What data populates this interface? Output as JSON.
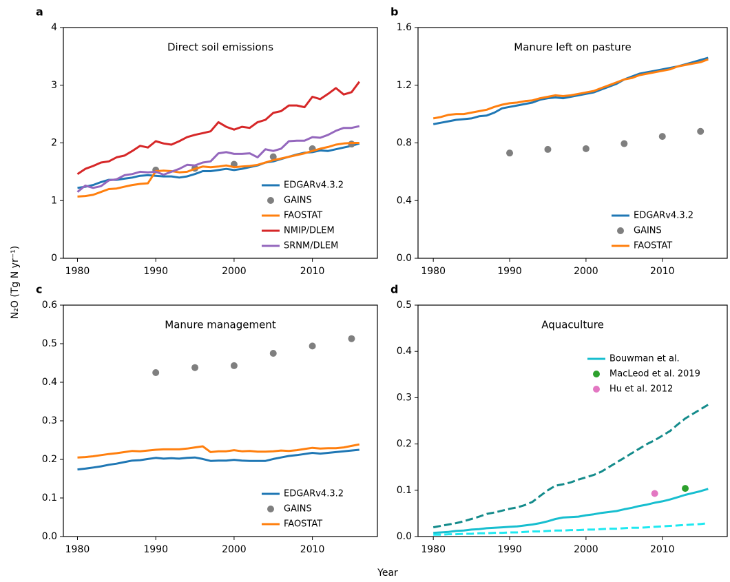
{
  "ylabel": "N₂O (Tg N yr⁻¹)",
  "xlabel": "Year",
  "chart_data": [
    {
      "type": "line",
      "label": "a",
      "title": "Direct soil emissions",
      "x": [
        1980,
        1981,
        1982,
        1983,
        1984,
        1985,
        1986,
        1987,
        1988,
        1989,
        1990,
        1991,
        1992,
        1993,
        1994,
        1995,
        1996,
        1997,
        1998,
        1999,
        2000,
        2001,
        2002,
        2003,
        2004,
        2005,
        2006,
        2007,
        2008,
        2009,
        2010,
        2011,
        2012,
        2013,
        2014,
        2015,
        2016
      ],
      "xlim": [
        1978.2,
        2018.3
      ],
      "xticks": [
        1980,
        1990,
        2000,
        2010
      ],
      "ylim": [
        0,
        4
      ],
      "yticks": [
        0,
        1,
        2,
        3,
        4
      ],
      "legend": "lower right",
      "series": [
        {
          "name": "EDGARv4.3.2",
          "kind": "line",
          "color": "#1f77b4",
          "values": [
            1.22,
            1.24,
            1.27,
            1.32,
            1.36,
            1.36,
            1.38,
            1.4,
            1.43,
            1.44,
            1.43,
            1.42,
            1.42,
            1.4,
            1.42,
            1.46,
            1.51,
            1.51,
            1.53,
            1.55,
            1.53,
            1.55,
            1.58,
            1.61,
            1.66,
            1.68,
            1.72,
            1.76,
            1.8,
            1.83,
            1.84,
            1.87,
            1.86,
            1.89,
            1.92,
            1.95,
            1.99
          ]
        },
        {
          "name": "GAINS",
          "kind": "scatter",
          "color": "#7f7f7f",
          "x": [
            1990,
            1995,
            2000,
            2005,
            2010,
            2015
          ],
          "values": [
            1.53,
            1.56,
            1.63,
            1.76,
            1.9,
            1.98
          ]
        },
        {
          "name": "FAOSTAT",
          "kind": "line",
          "color": "#ff7f0e",
          "values": [
            1.07,
            1.08,
            1.1,
            1.15,
            1.2,
            1.21,
            1.24,
            1.27,
            1.29,
            1.3,
            1.51,
            1.52,
            1.51,
            1.49,
            1.5,
            1.55,
            1.59,
            1.58,
            1.59,
            1.61,
            1.58,
            1.59,
            1.6,
            1.62,
            1.66,
            1.7,
            1.73,
            1.76,
            1.79,
            1.82,
            1.86,
            1.9,
            1.93,
            1.97,
            1.99,
            2.0,
            2.0
          ]
        },
        {
          "name": "NMIP/DLEM",
          "kind": "line",
          "color": "#d62728",
          "values": [
            1.46,
            1.55,
            1.6,
            1.66,
            1.68,
            1.75,
            1.78,
            1.86,
            1.95,
            1.92,
            2.03,
            1.99,
            1.97,
            2.03,
            2.1,
            2.14,
            2.17,
            2.2,
            2.36,
            2.28,
            2.23,
            2.28,
            2.26,
            2.36,
            2.4,
            2.52,
            2.55,
            2.65,
            2.65,
            2.62,
            2.8,
            2.76,
            2.85,
            2.95,
            2.84,
            2.88,
            3.06
          ]
        },
        {
          "name": "SRNM/DLEM",
          "kind": "line",
          "color": "#9467bd",
          "values": [
            1.15,
            1.26,
            1.22,
            1.25,
            1.35,
            1.37,
            1.44,
            1.46,
            1.5,
            1.49,
            1.5,
            1.45,
            1.5,
            1.55,
            1.62,
            1.61,
            1.66,
            1.68,
            1.82,
            1.84,
            1.81,
            1.81,
            1.82,
            1.75,
            1.89,
            1.86,
            1.9,
            2.03,
            2.04,
            2.04,
            2.1,
            2.09,
            2.14,
            2.21,
            2.26,
            2.26,
            2.29
          ]
        }
      ]
    },
    {
      "type": "line",
      "label": "b",
      "title": "Manure left on pasture",
      "x": [
        1980,
        1981,
        1982,
        1983,
        1984,
        1985,
        1986,
        1987,
        1988,
        1989,
        1990,
        1991,
        1992,
        1993,
        1994,
        1995,
        1996,
        1997,
        1998,
        1999,
        2000,
        2001,
        2002,
        2003,
        2004,
        2005,
        2006,
        2007,
        2008,
        2009,
        2010,
        2011,
        2012,
        2013,
        2014,
        2015,
        2016
      ],
      "xlim": [
        1978.0,
        2018.5
      ],
      "xticks": [
        1980,
        1990,
        2000,
        2010
      ],
      "ylim": [
        0,
        1.6
      ],
      "yticks": [
        {
          "value": 0,
          "label": "0.0"
        },
        0.4,
        0.8,
        1.2,
        1.6
      ],
      "legend": "lower right",
      "series": [
        {
          "name": "EDGARv4.3.2",
          "kind": "line",
          "color": "#1f77b4",
          "values": [
            0.93,
            0.94,
            0.95,
            0.96,
            0.965,
            0.97,
            0.985,
            0.99,
            1.01,
            1.04,
            1.05,
            1.06,
            1.07,
            1.08,
            1.1,
            1.11,
            1.115,
            1.11,
            1.12,
            1.13,
            1.14,
            1.15,
            1.17,
            1.19,
            1.21,
            1.24,
            1.26,
            1.28,
            1.29,
            1.3,
            1.31,
            1.32,
            1.33,
            1.345,
            1.36,
            1.375,
            1.39
          ]
        },
        {
          "name": "GAINS",
          "kind": "scatter",
          "color": "#7f7f7f",
          "x": [
            1990,
            1995,
            2000,
            2005,
            2010,
            2015
          ],
          "values": [
            0.73,
            0.755,
            0.76,
            0.795,
            0.845,
            0.88
          ]
        },
        {
          "name": "FAOSTAT",
          "kind": "line",
          "color": "#ff7f0e",
          "values": [
            0.97,
            0.98,
            0.995,
            1.0,
            1.0,
            1.01,
            1.02,
            1.03,
            1.05,
            1.065,
            1.075,
            1.08,
            1.09,
            1.095,
            1.11,
            1.12,
            1.13,
            1.125,
            1.13,
            1.14,
            1.15,
            1.16,
            1.18,
            1.2,
            1.22,
            1.24,
            1.25,
            1.27,
            1.28,
            1.29,
            1.3,
            1.31,
            1.33,
            1.34,
            1.35,
            1.36,
            1.38
          ]
        }
      ]
    },
    {
      "type": "line",
      "label": "c",
      "title": "Manure management",
      "x": [
        1980,
        1981,
        1982,
        1983,
        1984,
        1985,
        1986,
        1987,
        1988,
        1989,
        1990,
        1991,
        1992,
        1993,
        1994,
        1995,
        1996,
        1997,
        1998,
        1999,
        2000,
        2001,
        2002,
        2003,
        2004,
        2005,
        2006,
        2007,
        2008,
        2009,
        2010,
        2011,
        2012,
        2013,
        2014,
        2015,
        2016
      ],
      "xlim": [
        1978.2,
        2018.3
      ],
      "xticks": [
        1980,
        1990,
        2000,
        2010
      ],
      "ylim": [
        0,
        0.6
      ],
      "yticks": [
        {
          "value": 0,
          "label": "0.0"
        },
        0.1,
        0.2,
        0.3,
        0.4,
        0.5,
        0.6
      ],
      "legend": "lower right",
      "series": [
        {
          "name": "EDGARv4.3.2",
          "kind": "line",
          "color": "#1f77b4",
          "values": [
            0.174,
            0.176,
            0.179,
            0.182,
            0.186,
            0.189,
            0.193,
            0.197,
            0.198,
            0.201,
            0.204,
            0.202,
            0.203,
            0.202,
            0.204,
            0.205,
            0.201,
            0.196,
            0.197,
            0.197,
            0.199,
            0.197,
            0.196,
            0.196,
            0.196,
            0.201,
            0.205,
            0.209,
            0.211,
            0.214,
            0.217,
            0.215,
            0.217,
            0.219,
            0.221,
            0.223,
            0.225
          ]
        },
        {
          "name": "GAINS",
          "kind": "scatter",
          "color": "#7f7f7f",
          "x": [
            1990,
            1995,
            2000,
            2005,
            2010,
            2015
          ],
          "values": [
            0.425,
            0.438,
            0.443,
            0.475,
            0.494,
            0.513
          ]
        },
        {
          "name": "FAOSTAT",
          "kind": "line",
          "color": "#ff7f0e",
          "values": [
            0.205,
            0.206,
            0.208,
            0.211,
            0.214,
            0.216,
            0.219,
            0.222,
            0.221,
            0.223,
            0.225,
            0.226,
            0.226,
            0.226,
            0.228,
            0.231,
            0.234,
            0.219,
            0.221,
            0.221,
            0.224,
            0.221,
            0.222,
            0.22,
            0.22,
            0.221,
            0.223,
            0.222,
            0.224,
            0.227,
            0.23,
            0.228,
            0.229,
            0.229,
            0.231,
            0.235,
            0.239
          ]
        }
      ]
    },
    {
      "type": "line",
      "label": "d",
      "title": "Aquaculture",
      "x": [
        1980,
        1981,
        1982,
        1983,
        1984,
        1985,
        1986,
        1987,
        1988,
        1989,
        1990,
        1991,
        1992,
        1993,
        1994,
        1995,
        1996,
        1997,
        1998,
        1999,
        2000,
        2001,
        2002,
        2003,
        2004,
        2005,
        2006,
        2007,
        2008,
        2009,
        2010,
        2011,
        2012,
        2013,
        2014,
        2015,
        2016
      ],
      "xlim": [
        1978.0,
        2018.5
      ],
      "xticks": [
        1980,
        1990,
        2000,
        2010
      ],
      "ylim": [
        0,
        0.5
      ],
      "yticks": [
        {
          "value": 0,
          "label": "0.0"
        },
        0.1,
        0.2,
        0.3,
        0.4,
        0.5
      ],
      "legend": "upper right",
      "series": [
        {
          "name": "Bouwman et al.",
          "kind": "line",
          "color": "#17becf",
          "values": [
            0.008,
            0.009,
            0.01,
            0.012,
            0.013,
            0.015,
            0.016,
            0.018,
            0.019,
            0.02,
            0.021,
            0.022,
            0.024,
            0.026,
            0.029,
            0.033,
            0.038,
            0.041,
            0.042,
            0.043,
            0.046,
            0.048,
            0.051,
            0.053,
            0.055,
            0.059,
            0.062,
            0.066,
            0.069,
            0.073,
            0.076,
            0.08,
            0.085,
            0.09,
            0.094,
            0.098,
            0.103
          ]
        },
        {
          "kind": "line",
          "dashed": true,
          "color": "#148b8b",
          "values": [
            0.02,
            0.023,
            0.026,
            0.029,
            0.033,
            0.038,
            0.043,
            0.049,
            0.052,
            0.056,
            0.06,
            0.063,
            0.068,
            0.075,
            0.088,
            0.1,
            0.11,
            0.113,
            0.117,
            0.123,
            0.128,
            0.133,
            0.14,
            0.15,
            0.16,
            0.17,
            0.18,
            0.19,
            0.2,
            0.208,
            0.218,
            0.228,
            0.242,
            0.255,
            0.265,
            0.275,
            0.285
          ]
        },
        {
          "kind": "line",
          "dashed": true,
          "color": "#1ee8f0",
          "values": [
            0.004,
            0.004,
            0.005,
            0.005,
            0.006,
            0.006,
            0.007,
            0.007,
            0.008,
            0.008,
            0.009,
            0.009,
            0.01,
            0.011,
            0.011,
            0.012,
            0.013,
            0.013,
            0.014,
            0.014,
            0.015,
            0.015,
            0.016,
            0.017,
            0.017,
            0.018,
            0.019,
            0.019,
            0.02,
            0.021,
            0.022,
            0.023,
            0.024,
            0.025,
            0.026,
            0.027,
            0.029
          ]
        },
        {
          "name": "MacLeod et al. 2019",
          "kind": "scatter",
          "color": "#2ca02c",
          "x": [
            2013
          ],
          "values": [
            0.104
          ]
        },
        {
          "name": "Hu et al. 2012",
          "kind": "scatter",
          "color": "#e377c2",
          "x": [
            2009
          ],
          "values": [
            0.093
          ]
        }
      ]
    }
  ]
}
